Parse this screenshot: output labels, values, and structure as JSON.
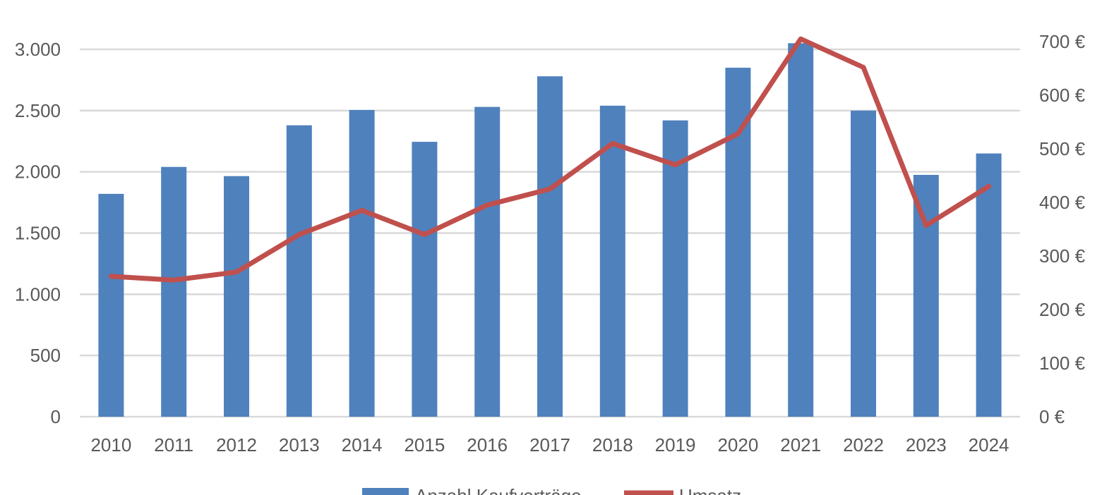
{
  "chart_data": {
    "type": "bar",
    "categories": [
      "2010",
      "2011",
      "2012",
      "2013",
      "2014",
      "2015",
      "2016",
      "2017",
      "2018",
      "2019",
      "2020",
      "2021",
      "2022",
      "2023",
      "2024"
    ],
    "series": [
      {
        "name": "Anzahl Kaufverträge",
        "type": "bar",
        "axis": "left",
        "color": "#4F81BD",
        "values": [
          1820,
          2040,
          1965,
          2380,
          2505,
          2245,
          2530,
          2780,
          2540,
          2420,
          2850,
          3050,
          2500,
          1975,
          2150
        ]
      },
      {
        "name": "Umsatz",
        "type": "line",
        "axis": "right",
        "color": "#C0504D",
        "values": [
          262,
          255,
          270,
          340,
          385,
          340,
          395,
          425,
          510,
          470,
          528,
          705,
          652,
          357,
          430
        ]
      }
    ],
    "y_left": {
      "min": 0,
      "max": 3000,
      "ticks": [
        "0",
        "500",
        "1.000",
        "1.500",
        "2.000",
        "2.500",
        "3.000"
      ],
      "tick_values": [
        0,
        500,
        1000,
        1500,
        2000,
        2500,
        3000
      ]
    },
    "y_right": {
      "min": 0,
      "max": 700,
      "ticks": [
        "0 €",
        "100 €",
        "200 €",
        "300 €",
        "400 €",
        "500 €",
        "600 €",
        "700 €"
      ],
      "tick_values": [
        0,
        100,
        200,
        300,
        400,
        500,
        600,
        700
      ]
    },
    "grid": true,
    "legend": "bottom",
    "gridline_color": "#D9D9D9"
  }
}
